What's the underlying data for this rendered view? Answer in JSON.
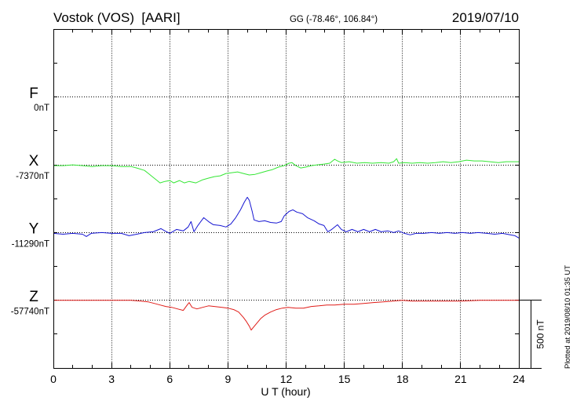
{
  "chart_data": {
    "type": "line",
    "title": "Vostok (VOS)  [AARI]",
    "subtitle": "GG (-78.46°, 106.84°)",
    "date": "2019/07/10",
    "xlabel": "U T (hour)",
    "xlim": [
      0,
      24
    ],
    "xticks": [
      0,
      3,
      6,
      9,
      12,
      15,
      18,
      21,
      24
    ],
    "grid": true,
    "scale_bar": {
      "value": 500,
      "label": "500 nT"
    },
    "annotation": "Plotted at 2019/08/10 01:35 UT",
    "series": [
      {
        "name": "F",
        "baseline": 0,
        "baseline_label": "0nT",
        "color": "#f5a300",
        "x": [],
        "y": []
      },
      {
        "name": "X",
        "baseline": -7370,
        "baseline_label": "-7370nT",
        "color": "#35e635",
        "x": [
          0,
          0.5,
          1,
          1.5,
          2,
          2.5,
          3,
          3.5,
          4,
          4.3,
          4.7,
          4.9,
          5.1,
          5.3,
          5.5,
          5.75,
          6,
          6.2,
          6.5,
          6.75,
          7,
          7.35,
          7.7,
          8,
          8.3,
          8.6,
          8.9,
          9.2,
          9.5,
          9.8,
          10.1,
          10.4,
          10.7,
          11,
          11.3,
          11.6,
          11.9,
          12.15,
          12.3,
          12.5,
          12.75,
          13,
          13.3,
          13.6,
          13.95,
          14.25,
          14.5,
          14.65,
          14.85,
          15.25,
          15.65,
          16.05,
          16.45,
          16.9,
          17.3,
          17.55,
          17.7,
          17.8,
          18.1,
          18.5,
          18.9,
          19.3,
          19.7,
          20.1,
          20.5,
          20.9,
          21.3,
          21.7,
          22.1,
          22.5,
          22.95,
          23.35,
          23.75,
          24
        ],
        "y": [
          -7376,
          -7376,
          -7370,
          -7376,
          -7382,
          -7376,
          -7376,
          -7382,
          -7382,
          -7393,
          -7411,
          -7434,
          -7457,
          -7480,
          -7503,
          -7492,
          -7486,
          -7503,
          -7486,
          -7503,
          -7492,
          -7503,
          -7480,
          -7468,
          -7457,
          -7451,
          -7434,
          -7428,
          -7422,
          -7434,
          -7445,
          -7440,
          -7428,
          -7416,
          -7405,
          -7387,
          -7376,
          -7358,
          -7353,
          -7376,
          -7393,
          -7387,
          -7376,
          -7370,
          -7364,
          -7358,
          -7329,
          -7341,
          -7353,
          -7347,
          -7358,
          -7353,
          -7358,
          -7353,
          -7358,
          -7347,
          -7324,
          -7358,
          -7353,
          -7358,
          -7353,
          -7358,
          -7353,
          -7347,
          -7353,
          -7347,
          -7335,
          -7341,
          -7341,
          -7347,
          -7353,
          -7347,
          -7347,
          -7347
        ]
      },
      {
        "name": "Y",
        "baseline": -11290,
        "baseline_label": "-11290nT",
        "color": "#1616d2",
        "x": [
          0,
          0.5,
          1,
          1.5,
          1.7,
          1.95,
          2.5,
          3,
          3.5,
          3.9,
          4.3,
          4.7,
          5.15,
          5.55,
          5.75,
          6,
          6.35,
          6.7,
          6.95,
          7.1,
          7.25,
          7.45,
          7.75,
          8,
          8.25,
          8.6,
          8.9,
          9.15,
          9.4,
          9.65,
          9.85,
          10,
          10.1,
          10.25,
          10.35,
          10.6,
          10.9,
          11.2,
          11.5,
          11.75,
          11.9,
          12.15,
          12.35,
          12.55,
          12.85,
          13.1,
          13.45,
          13.7,
          13.95,
          14.15,
          14.35,
          14.65,
          14.85,
          15.1,
          15.4,
          15.7,
          16,
          16.3,
          16.6,
          16.9,
          17.25,
          17.55,
          17.8,
          18.1,
          18.4,
          18.7,
          19.1,
          19.5,
          19.9,
          20.3,
          20.7,
          21.1,
          21.5,
          21.9,
          22.35,
          22.75,
          23.15,
          23.55,
          23.8,
          24
        ],
        "y": [
          -11296,
          -11302,
          -11296,
          -11302,
          -11319,
          -11296,
          -11290,
          -11296,
          -11296,
          -11313,
          -11302,
          -11290,
          -11284,
          -11261,
          -11278,
          -11296,
          -11267,
          -11278,
          -11249,
          -11209,
          -11284,
          -11238,
          -11180,
          -11209,
          -11232,
          -11238,
          -11249,
          -11226,
          -11180,
          -11122,
          -11064,
          -11029,
          -11052,
          -11134,
          -11197,
          -11209,
          -11203,
          -11215,
          -11220,
          -11209,
          -11168,
          -11134,
          -11122,
          -11139,
          -11151,
          -11180,
          -11203,
          -11226,
          -11238,
          -11284,
          -11267,
          -11232,
          -11267,
          -11284,
          -11267,
          -11284,
          -11267,
          -11284,
          -11267,
          -11284,
          -11278,
          -11290,
          -11278,
          -11296,
          -11307,
          -11296,
          -11296,
          -11290,
          -11296,
          -11290,
          -11296,
          -11290,
          -11296,
          -11290,
          -11296,
          -11302,
          -11296,
          -11307,
          -11313,
          -11330
        ]
      },
      {
        "name": "Z",
        "baseline": -57740,
        "baseline_label": "-57740nT",
        "color": "#e01c18",
        "x": [
          0,
          1,
          2,
          3,
          4,
          4.5,
          4.9,
          5.2,
          5.5,
          5.8,
          6.1,
          6.4,
          6.7,
          6.9,
          7,
          7.15,
          7.4,
          7.7,
          8,
          8.3,
          8.7,
          9,
          9.3,
          9.55,
          9.8,
          9.95,
          10.1,
          10.2,
          10.3,
          10.5,
          10.7,
          10.9,
          11.2,
          11.5,
          11.8,
          12.1,
          12.5,
          12.9,
          13.3,
          13.7,
          14.1,
          14.5,
          15,
          15.5,
          16,
          16.5,
          17,
          17.5,
          18,
          18.5,
          19,
          20,
          21,
          22,
          23,
          24
        ],
        "y": [
          -57740,
          -57740,
          -57740,
          -57740,
          -57740,
          -57746,
          -57752,
          -57763,
          -57775,
          -57786,
          -57792,
          -57804,
          -57815,
          -57775,
          -57757,
          -57792,
          -57804,
          -57792,
          -57781,
          -57786,
          -57792,
          -57798,
          -57809,
          -57827,
          -57867,
          -57896,
          -57931,
          -57960,
          -57942,
          -57908,
          -57873,
          -57850,
          -57827,
          -57809,
          -57798,
          -57792,
          -57798,
          -57798,
          -57786,
          -57781,
          -57775,
          -57775,
          -57769,
          -57769,
          -57763,
          -57757,
          -57752,
          -57746,
          -57740,
          -57746,
          -57746,
          -57746,
          -57746,
          -57740,
          -57740,
          -57740
        ]
      }
    ]
  }
}
